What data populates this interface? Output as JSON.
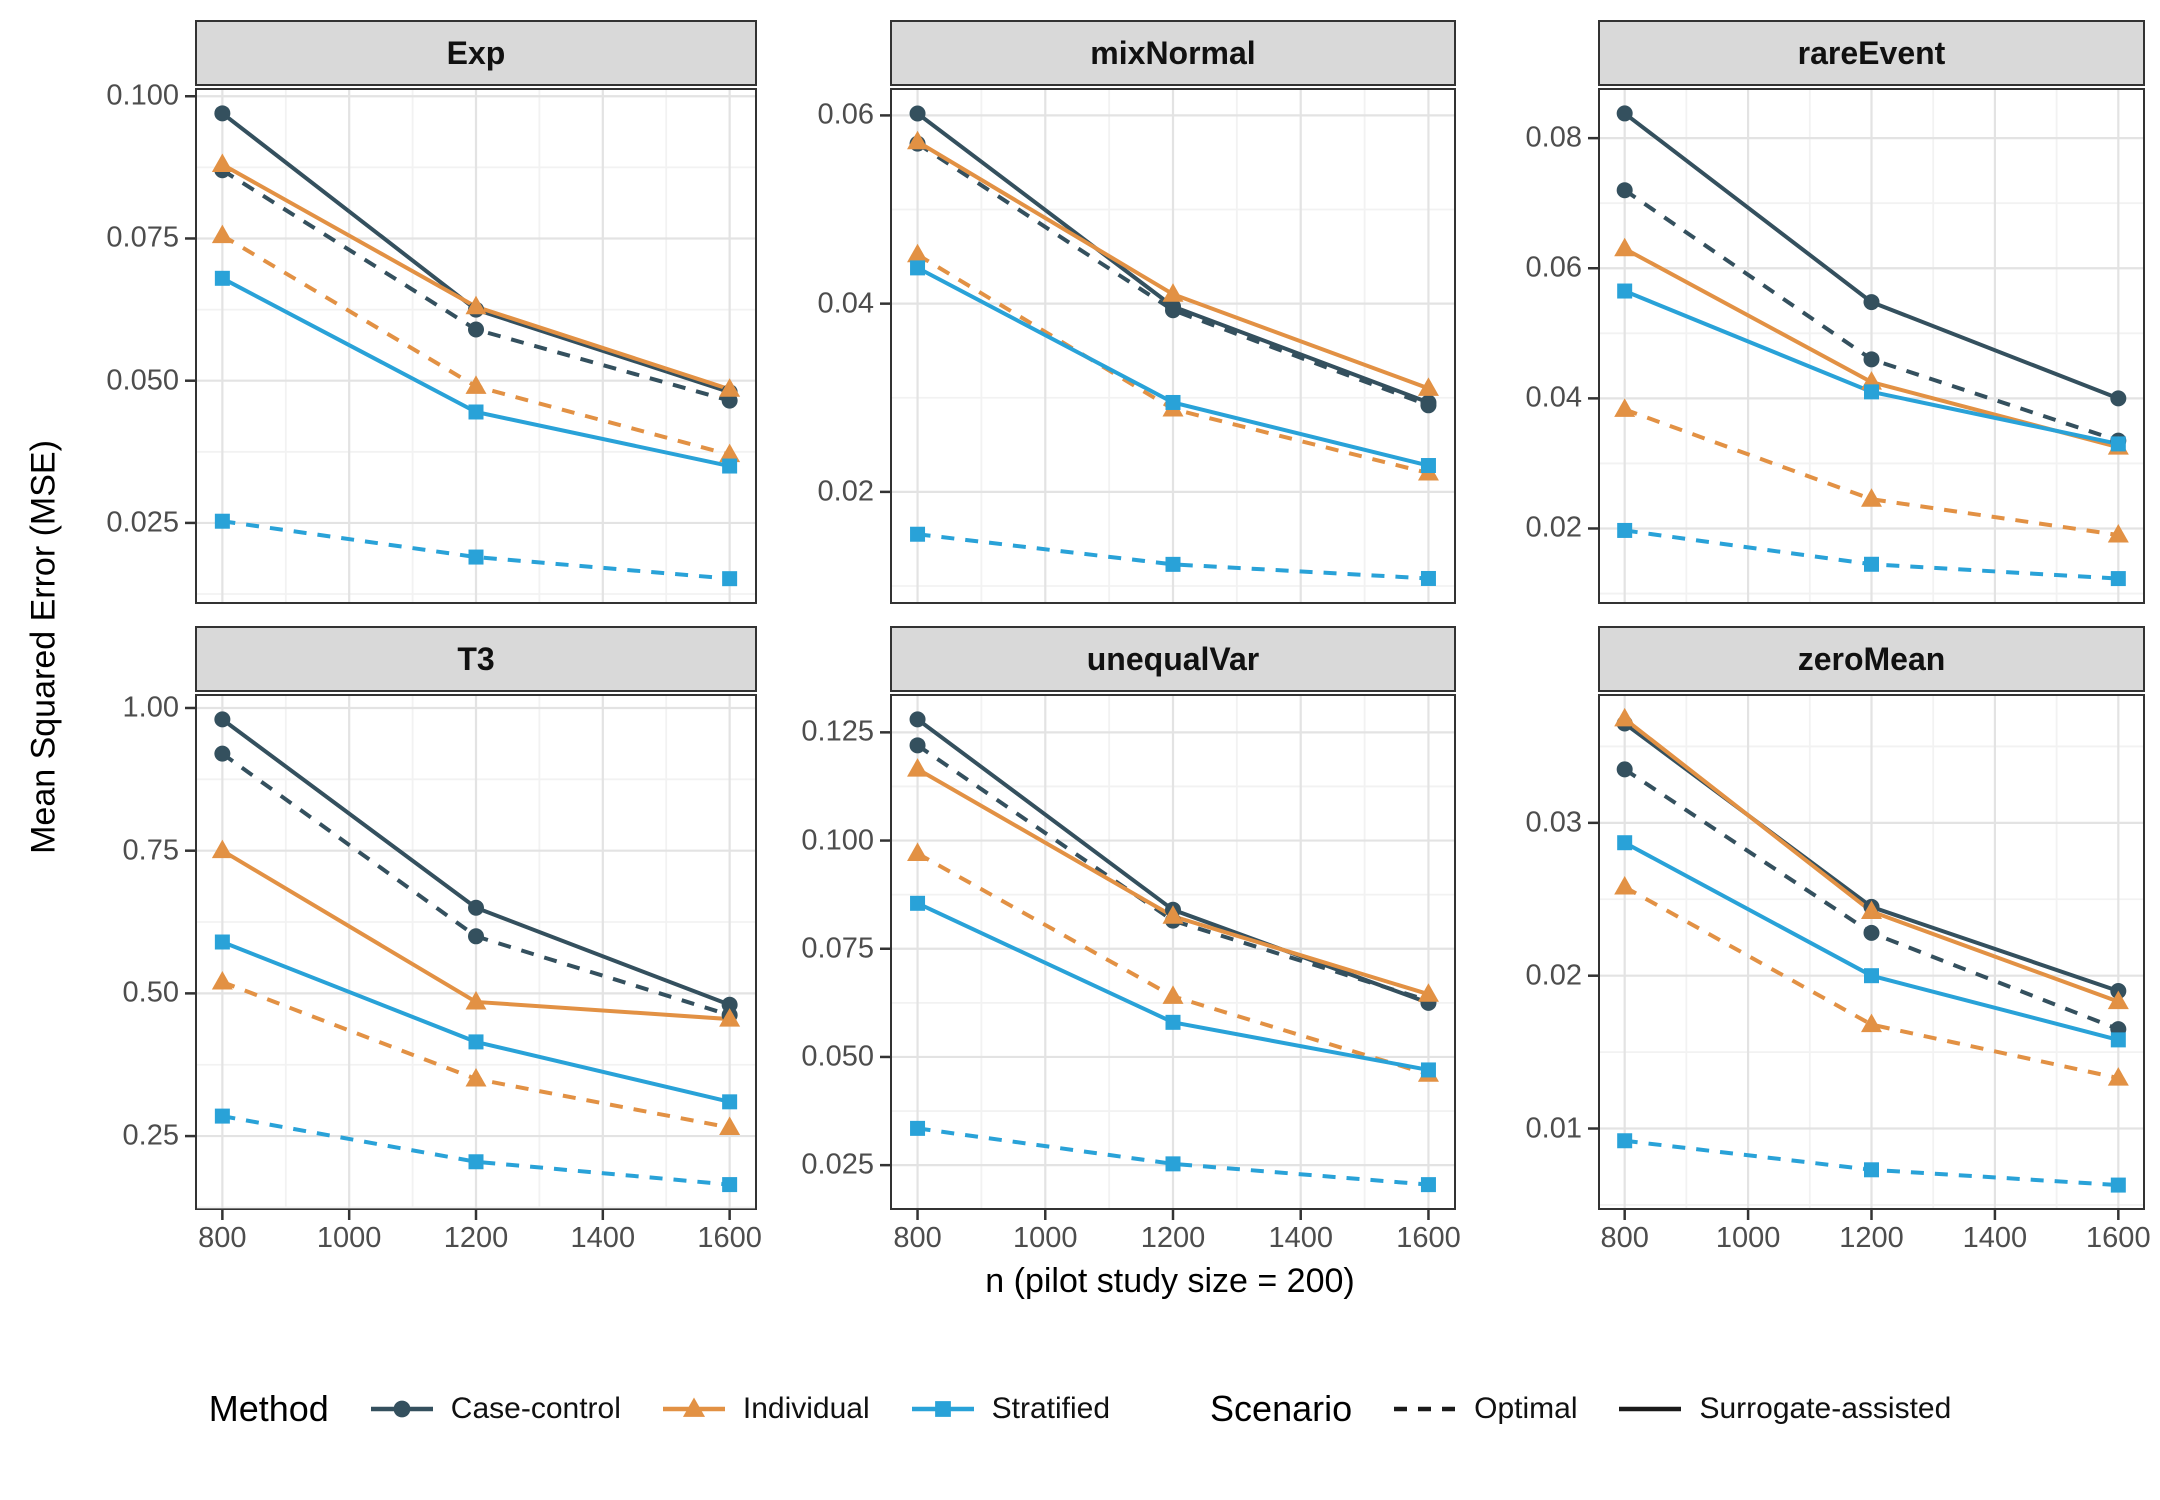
{
  "figure": {
    "y_axis_title": "Mean Squared Error (MSE)",
    "x_axis_title": "n (pilot study size = 200)"
  },
  "legend": {
    "method_title": "Method",
    "methods": [
      {
        "name": "Case-control",
        "marker": "circle",
        "color": "#34505E"
      },
      {
        "name": "Individual",
        "marker": "triangle",
        "color": "#E29144"
      },
      {
        "name": "Stratified",
        "marker": "square",
        "color": "#29A2D8"
      }
    ],
    "scenario_title": "Scenario",
    "scenarios": [
      {
        "name": "Optimal",
        "linestyle": "dashed"
      },
      {
        "name": "Surrogate-assisted",
        "linestyle": "solid"
      }
    ],
    "key_line_color": "#1a1a1a"
  },
  "colors": {
    "strip_bg": "#D9D9D9",
    "panel_border": "#333333",
    "grid_major": "#E3E3E3",
    "grid_minor": "#F2F2F2",
    "tick_mark": "#333333",
    "tick_text": "#4D4D4D"
  },
  "x_ticks": [
    {
      "value": 800,
      "label": "800"
    },
    {
      "value": 1000,
      "label": "1000"
    },
    {
      "value": 1200,
      "label": "1200"
    },
    {
      "value": 1400,
      "label": "1400"
    },
    {
      "value": 1600,
      "label": "1600"
    }
  ],
  "chart_data": [
    {
      "type": "line",
      "title": "Exp",
      "x": [
        800,
        1200,
        1600
      ],
      "xlim": [
        760,
        1640
      ],
      "ylim": [
        0.0111,
        0.1011
      ],
      "y_ticks": [
        {
          "value": 0.025,
          "label": "0.025"
        },
        {
          "value": 0.05,
          "label": "0.050"
        },
        {
          "value": 0.075,
          "label": "0.075"
        },
        {
          "value": 0.1,
          "label": "0.100"
        }
      ],
      "series": [
        {
          "method": "Case-control",
          "scenario": "Optimal",
          "values": [
            0.087,
            0.059,
            0.0465
          ]
        },
        {
          "method": "Case-control",
          "scenario": "Surrogate-assisted",
          "values": [
            0.097,
            0.0625,
            0.048
          ]
        },
        {
          "method": "Individual",
          "scenario": "Optimal",
          "values": [
            0.0755,
            0.049,
            0.037
          ]
        },
        {
          "method": "Individual",
          "scenario": "Surrogate-assisted",
          "values": [
            0.088,
            0.063,
            0.0485
          ]
        },
        {
          "method": "Stratified",
          "scenario": "Optimal",
          "values": [
            0.0253,
            0.019,
            0.0152
          ]
        },
        {
          "method": "Stratified",
          "scenario": "Surrogate-assisted",
          "values": [
            0.068,
            0.0445,
            0.035
          ]
        }
      ]
    },
    {
      "type": "line",
      "title": "mixNormal",
      "x": [
        800,
        1200,
        1600
      ],
      "xlim": [
        760,
        1640
      ],
      "ylim": [
        0.0083,
        0.0627
      ],
      "y_ticks": [
        {
          "value": 0.02,
          "label": "0.02"
        },
        {
          "value": 0.04,
          "label": "0.04"
        },
        {
          "value": 0.06,
          "label": "0.06"
        }
      ],
      "series": [
        {
          "method": "Case-control",
          "scenario": "Optimal",
          "values": [
            0.057,
            0.0393,
            0.0292
          ]
        },
        {
          "method": "Case-control",
          "scenario": "Surrogate-assisted",
          "values": [
            0.0602,
            0.0397,
            0.0295
          ]
        },
        {
          "method": "Individual",
          "scenario": "Optimal",
          "values": [
            0.0452,
            0.0288,
            0.022
          ]
        },
        {
          "method": "Individual",
          "scenario": "Surrogate-assisted",
          "values": [
            0.0572,
            0.041,
            0.031
          ]
        },
        {
          "method": "Stratified",
          "scenario": "Optimal",
          "values": [
            0.0155,
            0.0123,
            0.0108
          ]
        },
        {
          "method": "Stratified",
          "scenario": "Surrogate-assisted",
          "values": [
            0.0438,
            0.0295,
            0.0228
          ]
        }
      ]
    },
    {
      "type": "line",
      "title": "rareEvent",
      "x": [
        800,
        1200,
        1600
      ],
      "xlim": [
        760,
        1640
      ],
      "ylim": [
        0.0087,
        0.0874
      ],
      "y_ticks": [
        {
          "value": 0.02,
          "label": "0.02"
        },
        {
          "value": 0.04,
          "label": "0.04"
        },
        {
          "value": 0.06,
          "label": "0.06"
        },
        {
          "value": 0.08,
          "label": "0.08"
        }
      ],
      "series": [
        {
          "method": "Case-control",
          "scenario": "Optimal",
          "values": [
            0.072,
            0.046,
            0.0335
          ]
        },
        {
          "method": "Case-control",
          "scenario": "Surrogate-assisted",
          "values": [
            0.0838,
            0.0548,
            0.04
          ]
        },
        {
          "method": "Individual",
          "scenario": "Optimal",
          "values": [
            0.0383,
            0.0245,
            0.019
          ]
        },
        {
          "method": "Individual",
          "scenario": "Surrogate-assisted",
          "values": [
            0.063,
            0.0425,
            0.0325
          ]
        },
        {
          "method": "Stratified",
          "scenario": "Optimal",
          "values": [
            0.0197,
            0.0145,
            0.0123
          ]
        },
        {
          "method": "Stratified",
          "scenario": "Surrogate-assisted",
          "values": [
            0.0565,
            0.041,
            0.033
          ]
        }
      ]
    },
    {
      "type": "line",
      "title": "T3",
      "x": [
        800,
        1200,
        1600
      ],
      "xlim": [
        760,
        1640
      ],
      "ylim": [
        0.124,
        1.021
      ],
      "y_ticks": [
        {
          "value": 0.25,
          "label": "0.25"
        },
        {
          "value": 0.5,
          "label": "0.50"
        },
        {
          "value": 0.75,
          "label": "0.75"
        },
        {
          "value": 1.0,
          "label": "1.00"
        }
      ],
      "series": [
        {
          "method": "Case-control",
          "scenario": "Optimal",
          "values": [
            0.92,
            0.6,
            0.462
          ]
        },
        {
          "method": "Case-control",
          "scenario": "Surrogate-assisted",
          "values": [
            0.98,
            0.65,
            0.48
          ]
        },
        {
          "method": "Individual",
          "scenario": "Optimal",
          "values": [
            0.52,
            0.35,
            0.265
          ]
        },
        {
          "method": "Individual",
          "scenario": "Surrogate-assisted",
          "values": [
            0.75,
            0.485,
            0.455
          ]
        },
        {
          "method": "Stratified",
          "scenario": "Optimal",
          "values": [
            0.285,
            0.205,
            0.165
          ]
        },
        {
          "method": "Stratified",
          "scenario": "Surrogate-assisted",
          "values": [
            0.59,
            0.415,
            0.31
          ]
        }
      ]
    },
    {
      "type": "line",
      "title": "unequalVar",
      "x": [
        800,
        1200,
        1600
      ],
      "xlim": [
        760,
        1640
      ],
      "ylim": [
        0.0151,
        0.1334
      ],
      "y_ticks": [
        {
          "value": 0.025,
          "label": "0.025"
        },
        {
          "value": 0.05,
          "label": "0.050"
        },
        {
          "value": 0.075,
          "label": "0.075"
        },
        {
          "value": 0.1,
          "label": "0.100"
        },
        {
          "value": 0.125,
          "label": "0.125"
        }
      ],
      "series": [
        {
          "method": "Case-control",
          "scenario": "Optimal",
          "values": [
            0.122,
            0.0815,
            0.063
          ]
        },
        {
          "method": "Case-control",
          "scenario": "Surrogate-assisted",
          "values": [
            0.128,
            0.084,
            0.0625
          ]
        },
        {
          "method": "Individual",
          "scenario": "Optimal",
          "values": [
            0.097,
            0.064,
            0.046
          ]
        },
        {
          "method": "Individual",
          "scenario": "Surrogate-assisted",
          "values": [
            0.1165,
            0.0825,
            0.0645
          ]
        },
        {
          "method": "Stratified",
          "scenario": "Optimal",
          "values": [
            0.0335,
            0.0253,
            0.0205
          ]
        },
        {
          "method": "Stratified",
          "scenario": "Surrogate-assisted",
          "values": [
            0.0855,
            0.058,
            0.047
          ]
        }
      ]
    },
    {
      "type": "line",
      "title": "zeroMean",
      "x": [
        800,
        1200,
        1600
      ],
      "xlim": [
        760,
        1640
      ],
      "ylim": [
        0.0048,
        0.0383
      ],
      "y_ticks": [
        {
          "value": 0.01,
          "label": "0.01"
        },
        {
          "value": 0.02,
          "label": "0.02"
        },
        {
          "value": 0.03,
          "label": "0.03"
        }
      ],
      "series": [
        {
          "method": "Case-control",
          "scenario": "Optimal",
          "values": [
            0.0335,
            0.0228,
            0.0165
          ]
        },
        {
          "method": "Case-control",
          "scenario": "Surrogate-assisted",
          "values": [
            0.0365,
            0.0245,
            0.019
          ]
        },
        {
          "method": "Individual",
          "scenario": "Optimal",
          "values": [
            0.0258,
            0.0168,
            0.0133
          ]
        },
        {
          "method": "Individual",
          "scenario": "Surrogate-assisted",
          "values": [
            0.0368,
            0.0242,
            0.0183
          ]
        },
        {
          "method": "Stratified",
          "scenario": "Optimal",
          "values": [
            0.0092,
            0.0073,
            0.0063
          ]
        },
        {
          "method": "Stratified",
          "scenario": "Surrogate-assisted",
          "values": [
            0.0287,
            0.02,
            0.0158
          ]
        }
      ]
    }
  ]
}
